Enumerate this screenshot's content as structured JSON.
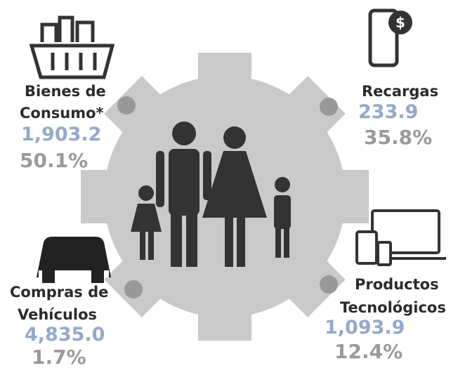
{
  "items": [
    {
      "label": [
        "Bienes de",
        "Consumo*"
      ],
      "amount": "1,903.2",
      "percent": "50.1%"
    },
    {
      "label": [
        "Recargas"
      ],
      "amount": "233.9",
      "percent": "35.8%"
    },
    {
      "label": [
        "Compras de",
        "Vehículos"
      ],
      "amount": "4,835.0",
      "percent": "1.7%"
    },
    {
      "label": [
        "Productos",
        "Tecnológicos"
      ],
      "amount": "1,093.9",
      "percent": "12.4%"
    }
  ]
}
